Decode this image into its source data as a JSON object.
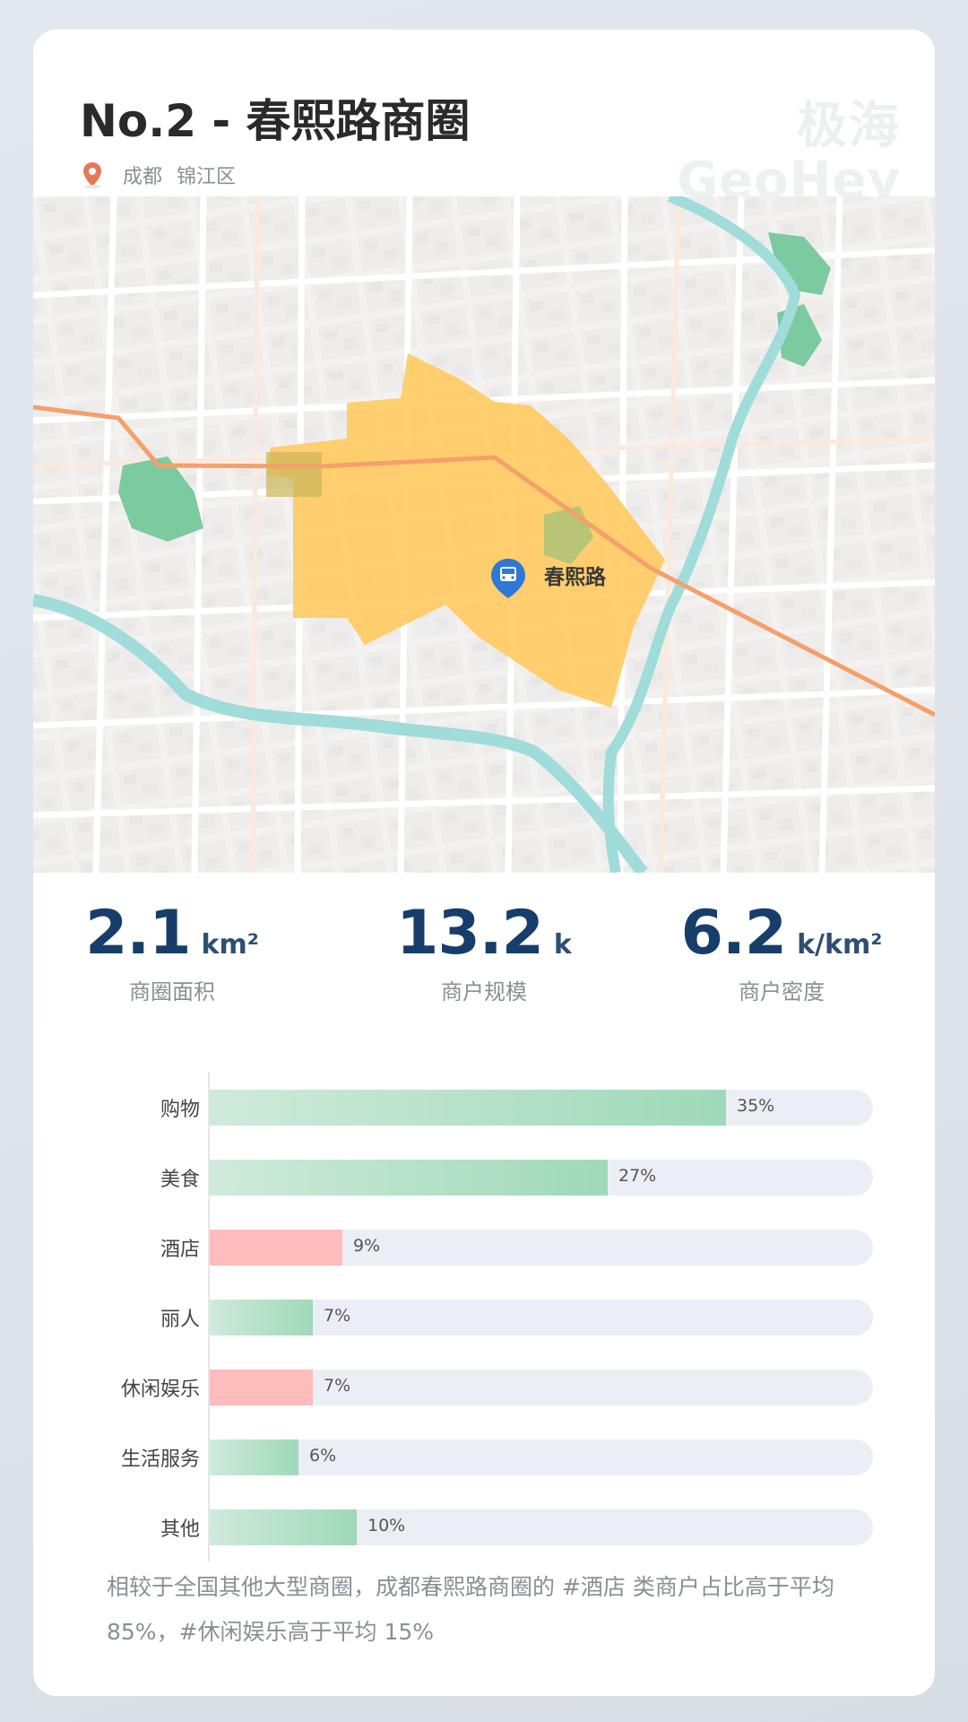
{
  "header": {
    "title": "No.2 -  春熙路商圈",
    "location": {
      "city": "成都",
      "district": "锦江区"
    },
    "watermark_cn": "极海",
    "watermark_en": "GeoHey"
  },
  "map": {
    "poi_label": "春熙路",
    "poi_icon": "bus-stop-icon",
    "colors": {
      "area": "#ffc85c",
      "water": "#9fdcda",
      "park": "#7ccaa0",
      "rail": "#f5a06a"
    }
  },
  "stats": [
    {
      "value": "2.1",
      "unit": "km²",
      "label": "商圈面积"
    },
    {
      "value": "13.2",
      "unit": "k",
      "label": "商户规模"
    },
    {
      "value": "6.2",
      "unit": "k/km²",
      "label": "商户密度"
    }
  ],
  "chart_data": {
    "type": "bar",
    "orientation": "horizontal",
    "categories": [
      "购物",
      "美食",
      "酒店",
      "丽人",
      "休闲娱乐",
      "生活服务",
      "其他"
    ],
    "values": [
      35,
      27,
      9,
      7,
      7,
      6,
      10
    ],
    "value_labels": [
      "35%",
      "27%",
      "9%",
      "7%",
      "7%",
      "6%",
      "10%"
    ],
    "highlight": [
      false,
      false,
      true,
      false,
      true,
      false,
      false
    ],
    "colors": {
      "normal": "#9fd9b9",
      "highlight": "#ffbcbc",
      "track": "#eceef6"
    },
    "xlim": [
      0,
      45
    ]
  },
  "footnote": "相较于全国其他大型商圈，成都春熙路商圈的 #酒店 类商户占比高于平均 85%，#休闲娱乐高于平均 15%"
}
